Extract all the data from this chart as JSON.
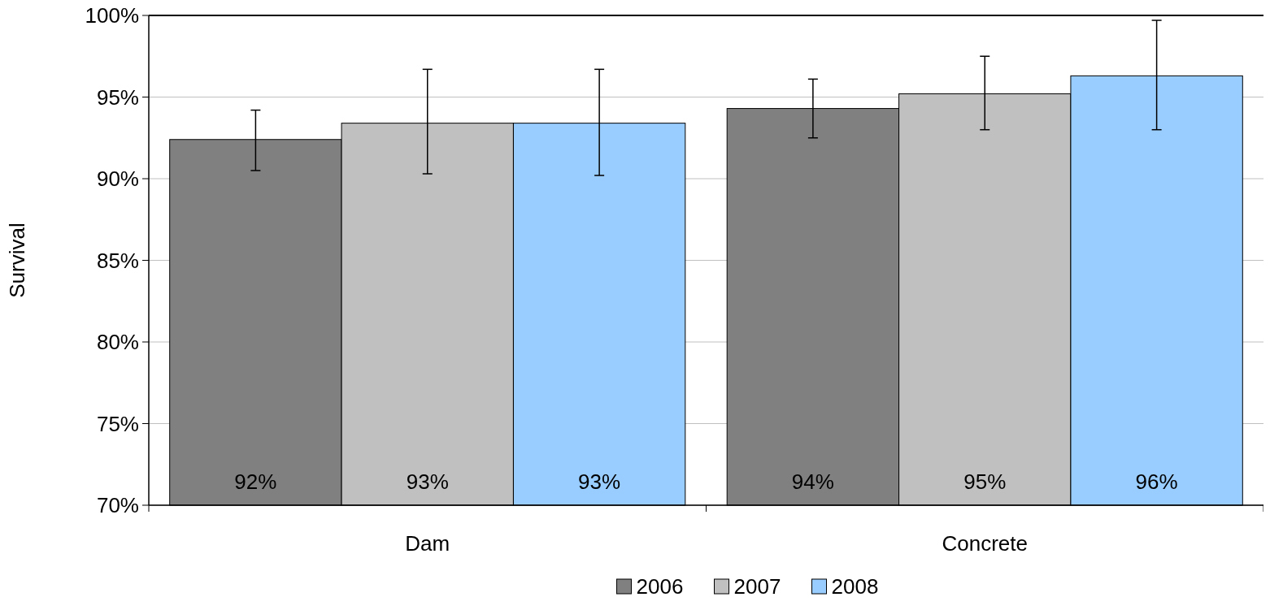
{
  "chart_data": {
    "type": "bar",
    "categories": [
      "Dam",
      "Concrete"
    ],
    "ylabel": "Survival",
    "ylim": [
      70,
      100
    ],
    "yticks": [
      {
        "value": 70,
        "label": "70%"
      },
      {
        "value": 75,
        "label": "75%"
      },
      {
        "value": 80,
        "label": "80%"
      },
      {
        "value": 85,
        "label": "85%"
      },
      {
        "value": 90,
        "label": "90%"
      },
      {
        "value": 95,
        "label": "95%"
      },
      {
        "value": 100,
        "label": "100%"
      }
    ],
    "grid": "y",
    "legend": "bottom",
    "series": [
      {
        "name": "2006",
        "color": "#808080",
        "values": [
          92.4,
          94.3
        ],
        "errors": [
          [
            90.5,
            94.2
          ],
          [
            92.5,
            96.1
          ]
        ],
        "value_labels": [
          "92%",
          "94%"
        ]
      },
      {
        "name": "2007",
        "color": "#c0c0c0",
        "values": [
          93.4,
          95.2
        ],
        "errors": [
          [
            90.3,
            96.7
          ],
          [
            93.0,
            97.5
          ]
        ],
        "value_labels": [
          "93%",
          "95%"
        ]
      },
      {
        "name": "2008",
        "color": "#99ccff",
        "values": [
          93.4,
          96.3
        ],
        "errors": [
          [
            90.2,
            96.7
          ],
          [
            93.0,
            99.7
          ]
        ],
        "value_labels": [
          "93%",
          "96%"
        ]
      }
    ]
  }
}
